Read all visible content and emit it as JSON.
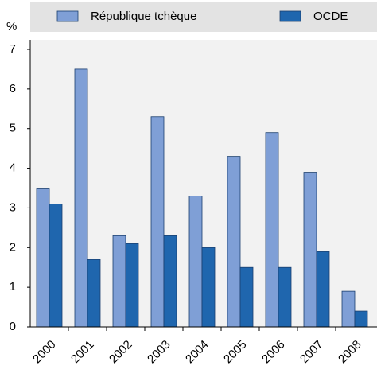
{
  "chart_data": {
    "type": "bar",
    "y_label": "%",
    "categories": [
      "2000",
      "2001",
      "2002",
      "2003",
      "2004",
      "2005",
      "2006",
      "2007",
      "2008"
    ],
    "series": [
      {
        "name": "République tchèque",
        "color": "#7f9fd6",
        "values": [
          3.5,
          6.5,
          2.3,
          5.3,
          3.3,
          4.3,
          4.9,
          3.9,
          0.9
        ]
      },
      {
        "name": "OCDE",
        "color": "#1f66ae",
        "values": [
          3.1,
          1.7,
          2.1,
          2.3,
          2.0,
          1.5,
          1.5,
          1.9,
          0.4
        ]
      }
    ],
    "ylim": [
      0,
      7
    ],
    "yticks": [
      0,
      1,
      2,
      3,
      4,
      5,
      6,
      7
    ],
    "grid": false,
    "legend": "top"
  }
}
